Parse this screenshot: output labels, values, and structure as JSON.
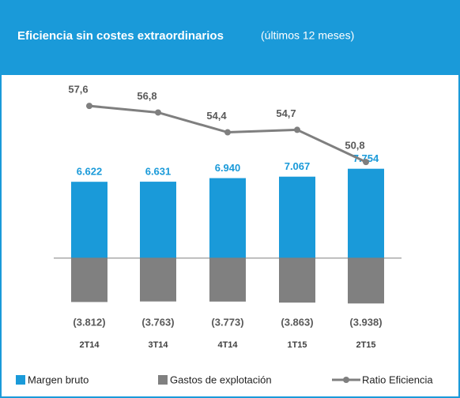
{
  "chart_data": {
    "type": "combo",
    "title": "Eficiencia sin costes extraordinarios",
    "subtitle": "(últimos 12 meses)",
    "categories": [
      "2T14",
      "3T14",
      "4T14",
      "1T15",
      "2T15"
    ],
    "ylim": [
      -4500,
      9000
    ],
    "y2lim": [
      50,
      59
    ],
    "series": [
      {
        "name": "Margen bruto",
        "type": "bar",
        "color": "#1a9ad9",
        "values": [
          6622,
          6631,
          6940,
          7067,
          7754
        ],
        "value_labels": [
          "6.622",
          "6.631",
          "6.940",
          "7.067",
          "7.754"
        ]
      },
      {
        "name": "Gastos de explotación",
        "type": "bar",
        "color": "#808080",
        "values": [
          -3812,
          -3763,
          -3773,
          -3863,
          -3938
        ],
        "value_labels": [
          "(3.812)",
          "(3.763)",
          "(3.773)",
          "(3.863)",
          "(3.938)"
        ]
      },
      {
        "name": "Ratio Eficiencia",
        "type": "line",
        "axis": "y2",
        "color": "#7f7f7f",
        "values": [
          57.6,
          56.8,
          54.4,
          54.7,
          50.8
        ],
        "value_labels": [
          "57,6",
          "56,8",
          "54,4",
          "54,7",
          "50,8"
        ]
      }
    ]
  }
}
